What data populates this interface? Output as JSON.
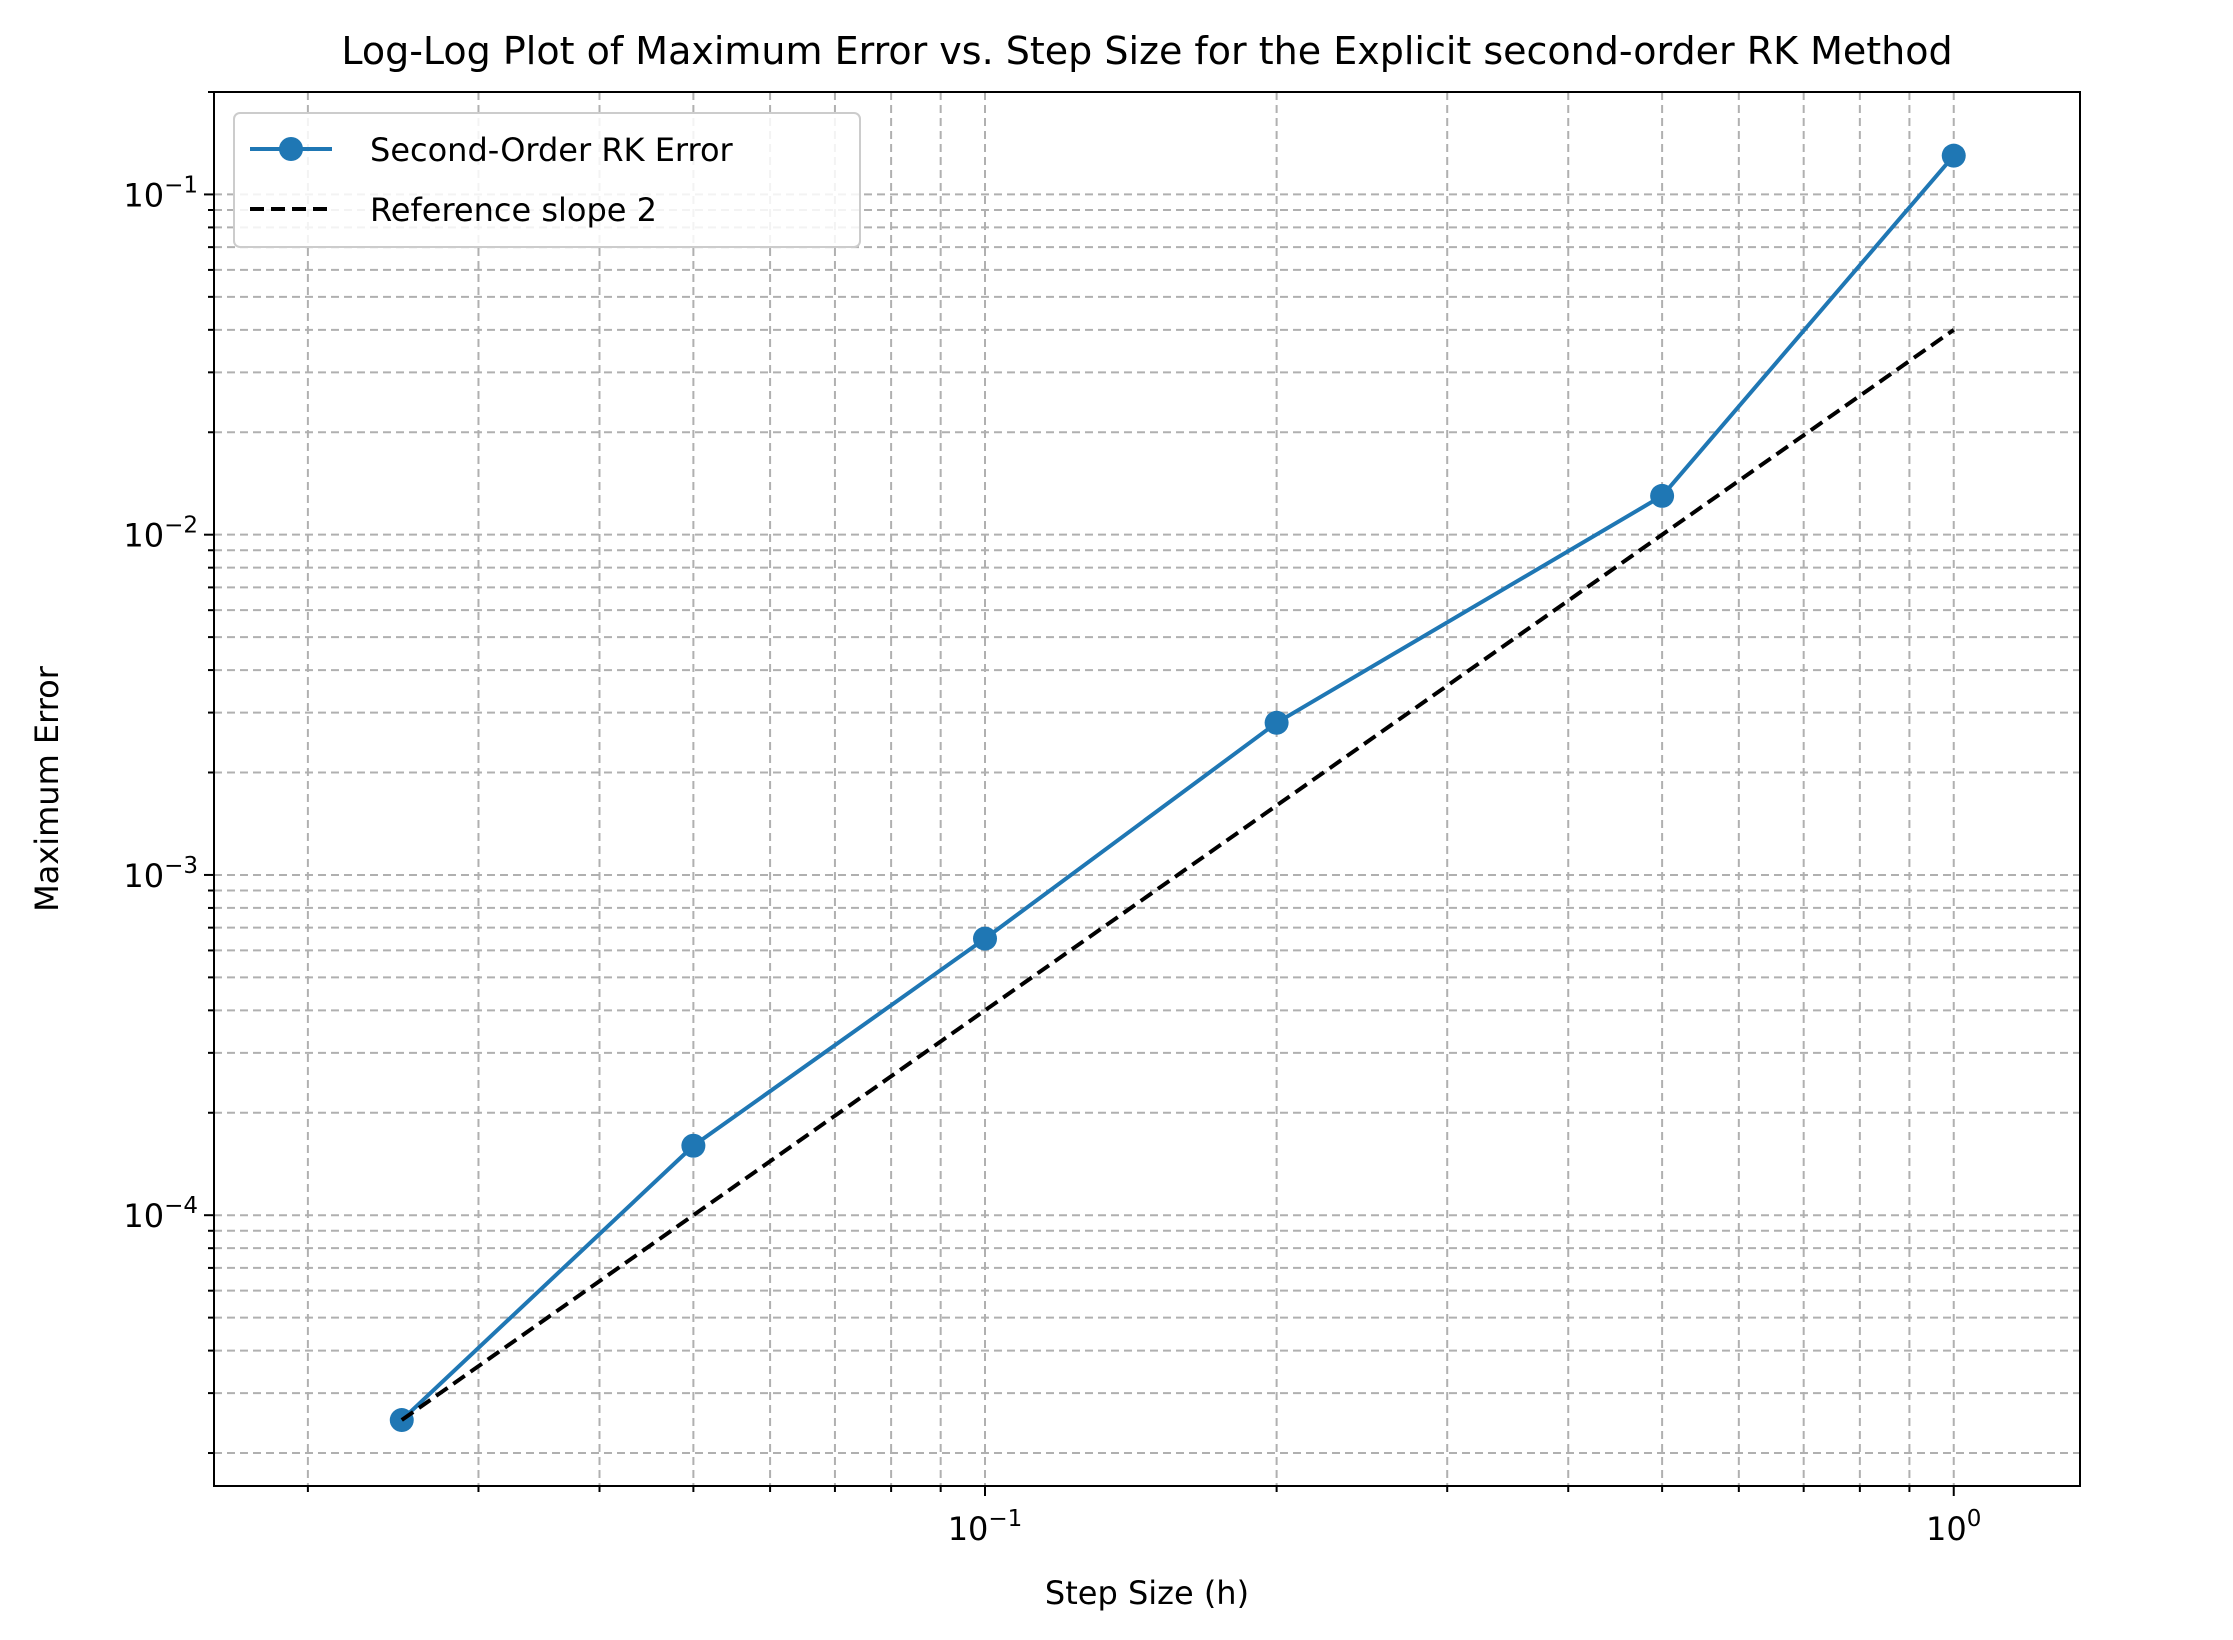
{
  "chart_data": {
    "type": "line",
    "title": "Log-Log Plot of Maximum Error vs. Step Size for the Explicit second-order RK Method",
    "xlabel": "Step Size (h)",
    "ylabel": "Maximum Error",
    "xscale": "log",
    "yscale": "log",
    "xlim": [
      0.016,
      1.35
    ],
    "ylim": [
      1.6e-05,
      0.2
    ],
    "grid": true,
    "grid_which": "both",
    "legend_position": "top-left",
    "x_ticks": [
      {
        "value": 0.1,
        "base": "10",
        "exp": "−1"
      },
      {
        "value": 1,
        "base": "10",
        "exp": "0"
      }
    ],
    "y_ticks": [
      {
        "value": 0.0001,
        "base": "10",
        "exp": "−4"
      },
      {
        "value": 0.001,
        "base": "10",
        "exp": "−3"
      },
      {
        "value": 0.01,
        "base": "10",
        "exp": "−2"
      },
      {
        "value": 0.1,
        "base": "10",
        "exp": "−1"
      }
    ],
    "series": [
      {
        "name": "Second-Order RK Error",
        "style": "line-marker",
        "color": "#1f77b4",
        "x": [
          0.025,
          0.05,
          0.1,
          0.2,
          0.5,
          1.0
        ],
        "y": [
          2.5e-05,
          0.00016,
          0.00065,
          0.0028,
          0.013,
          0.13
        ]
      },
      {
        "name": "Reference slope 2",
        "style": "dashed",
        "color": "#000000",
        "x": [
          0.025,
          0.05,
          0.1,
          0.2,
          0.5,
          1.0
        ],
        "y": [
          2.5e-05,
          0.0001,
          0.0004,
          0.0016,
          0.01,
          0.04
        ]
      }
    ]
  }
}
